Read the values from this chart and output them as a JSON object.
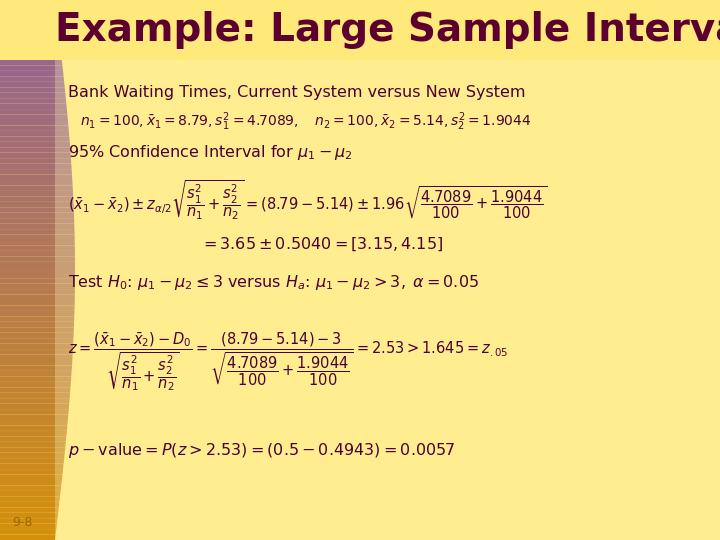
{
  "title": "Example: Large Sample Interval and Test",
  "title_color": "#5C0030",
  "title_fontsize": 28,
  "bg_color": "#FFE97A",
  "content_bg": "#FFF5B0",
  "left_bar_gold": "#D4900A",
  "left_bar_purple": "#9B7BBF",
  "text_color": "#4B0030",
  "slide_number": "9-8",
  "slide_number_color": "#996600",
  "subtitle": "Bank Waiting Times, Current System versus New System",
  "figsize": [
    7.2,
    5.4
  ],
  "dpi": 100
}
